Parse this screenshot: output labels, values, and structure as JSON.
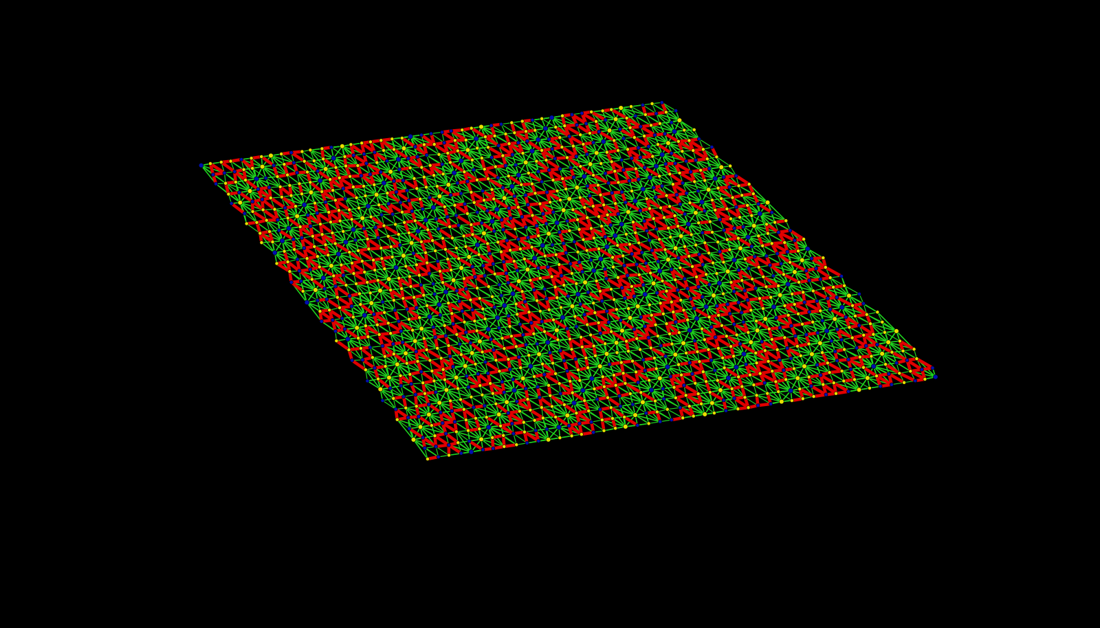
{
  "scene": {
    "background": "#000000",
    "colors": {
      "spoke": "#1fd41f",
      "bond": "#e00000",
      "node_yellow": "#e8e000",
      "node_blue": "#0010b0"
    }
  }
}
